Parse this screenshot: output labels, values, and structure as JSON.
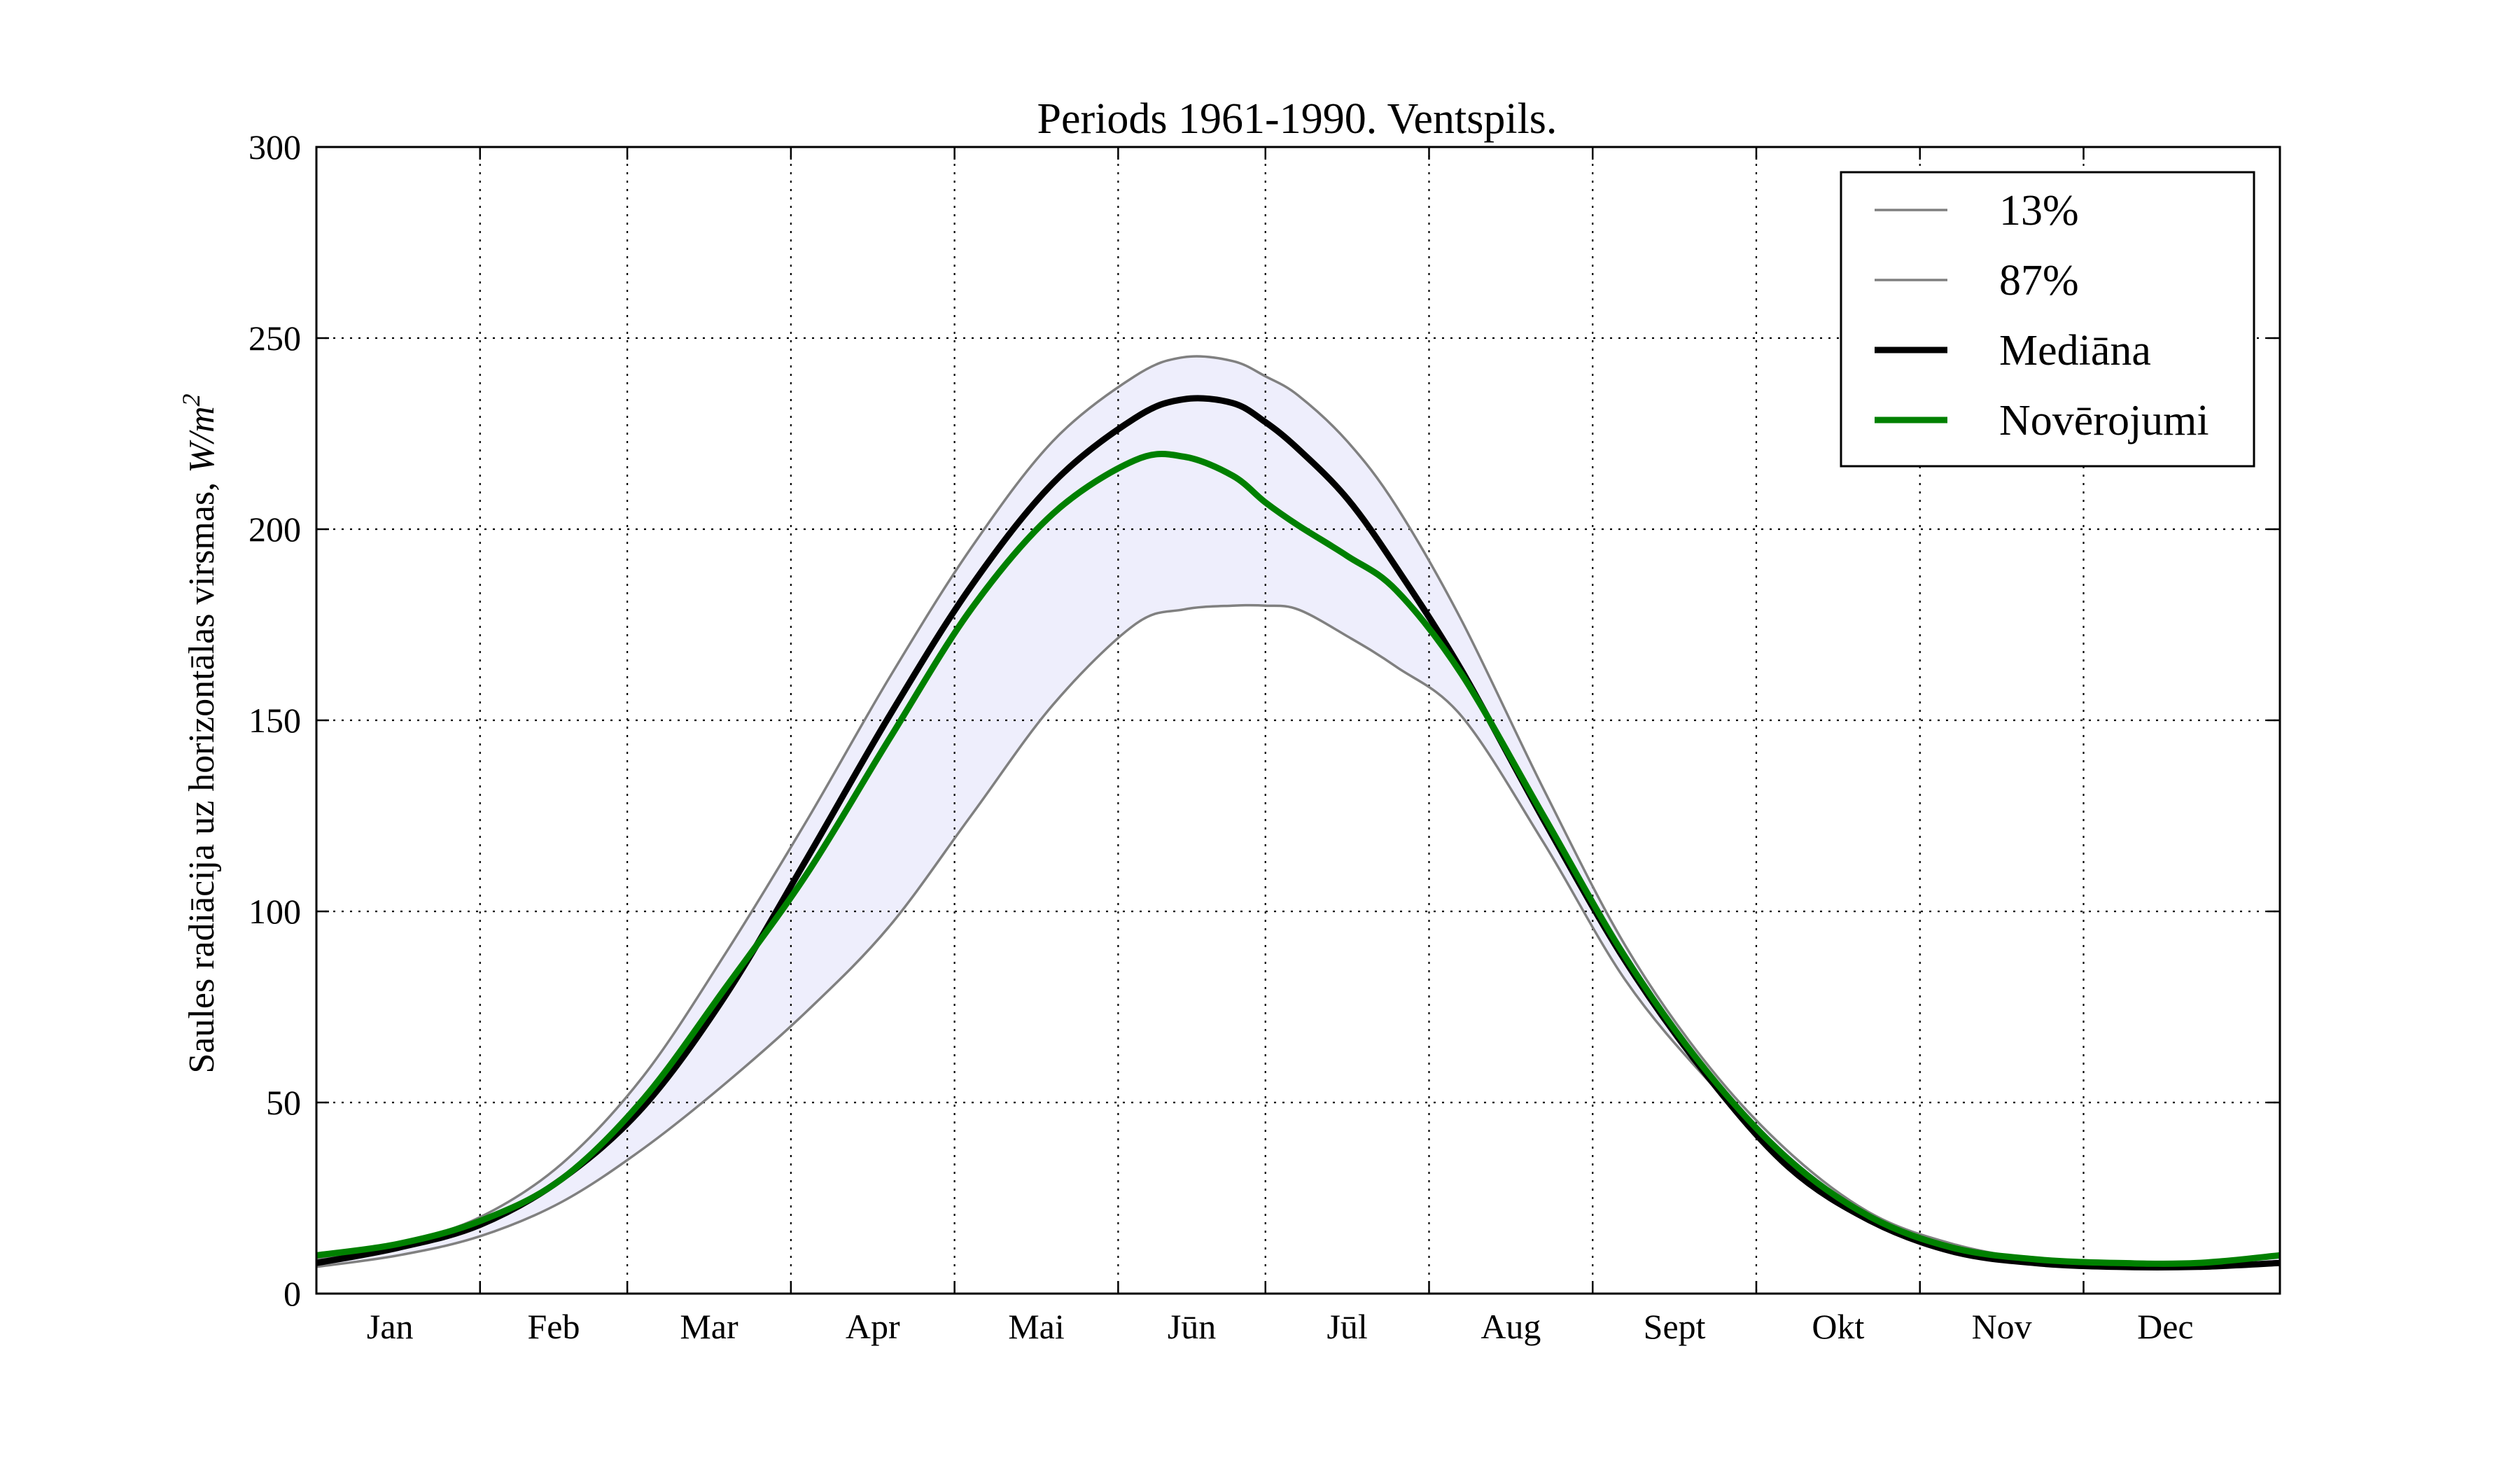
{
  "chart_data": {
    "type": "line",
    "title": "Periods 1961-1990. Ventspils.",
    "ylabel": "Saules radiācija uz horizontālas virsmas, ",
    "ylabel_unit": "W/m",
    "ylabel_exp": "2",
    "ylim": [
      0,
      300
    ],
    "xlim": [
      0,
      12
    ],
    "yticks": [
      0,
      50,
      100,
      150,
      200,
      250,
      300
    ],
    "ytick_labels": [
      "0",
      "50",
      "100",
      "150",
      "200",
      "250",
      "300"
    ],
    "month_boundaries": [
      1,
      1.9,
      2.9,
      3.9,
      4.9,
      5.8,
      6.8,
      7.8,
      8.8,
      9.8,
      10.8
    ],
    "months": [
      "Jan",
      "Feb",
      "Mar",
      "Apr",
      "Mai",
      "Jūn",
      "Jūl",
      "Aug",
      "Sept",
      "Okt",
      "Nov",
      "Dec"
    ],
    "month_label_pos": [
      0.45,
      1.45,
      2.4,
      3.4,
      4.4,
      5.35,
      6.3,
      7.3,
      8.3,
      9.3,
      10.3,
      11.3
    ],
    "grid": true,
    "legend_position": "top-right",
    "x": [
      0,
      0.5,
      1,
      1.5,
      2,
      2.5,
      3,
      3.5,
      4,
      4.5,
      5,
      5.3,
      5.6,
      5.8,
      6,
      6.3,
      6.6,
      7,
      7.5,
      8,
      8.5,
      9,
      9.5,
      10,
      10.5,
      11,
      11.5,
      12
    ],
    "band_fill": "#eeeefc",
    "series": [
      {
        "name": "13%",
        "color": "#808080",
        "width": 3.5,
        "values": [
          7,
          10,
          15,
          24,
          38,
          55,
          74,
          96,
          125,
          154,
          175,
          179,
          180,
          180,
          179,
          172,
          164,
          151,
          118,
          82,
          56,
          35,
          20,
          12,
          8,
          7,
          7,
          8
        ]
      },
      {
        "name": "87%",
        "color": "#808080",
        "width": 3.5,
        "values": [
          9,
          13,
          20,
          34,
          57,
          89,
          124,
          161,
          195,
          223,
          240,
          245,
          244,
          240,
          235,
          223,
          206,
          176,
          132,
          91,
          60,
          37,
          21,
          13,
          9,
          8,
          8,
          10
        ]
      },
      {
        "name": "Mediāna",
        "color": "#000000",
        "width": 9,
        "values": [
          8,
          12,
          18,
          30,
          49,
          78,
          114,
          151,
          185,
          212,
          229,
          234,
          233,
          228,
          221,
          208,
          190,
          163,
          124,
          87,
          57,
          33,
          19,
          11,
          8,
          7,
          7,
          8
        ]
      },
      {
        "name": "Novērojumi",
        "color": "#008000",
        "width": 9,
        "values": [
          10,
          13,
          19,
          30,
          51,
          80,
          110,
          145,
          179,
          204,
          218,
          219,
          214,
          207,
          201,
          193,
          184,
          162,
          125,
          88,
          58,
          35,
          20,
          12,
          9,
          8,
          8,
          10
        ]
      }
    ]
  }
}
